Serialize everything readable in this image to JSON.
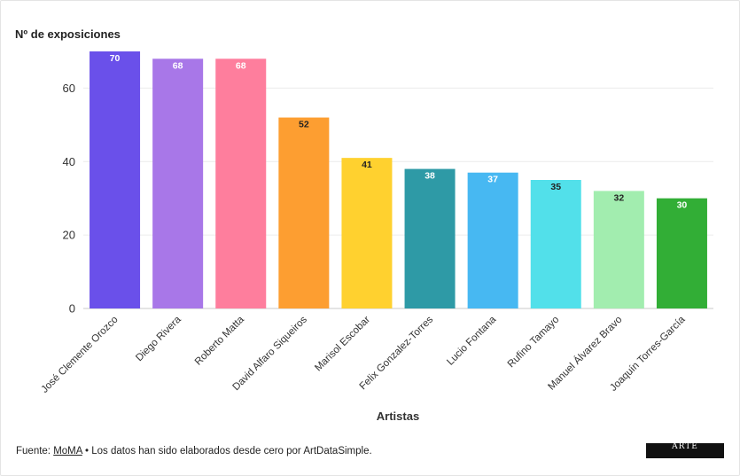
{
  "chart_data": {
    "type": "bar",
    "ylabel": "Nº de exposiciones",
    "xlabel": "Artistas",
    "ylim": [
      0,
      70
    ],
    "yticks": [
      0,
      20,
      40,
      60
    ],
    "grid": true,
    "categories": [
      "José Clemente Orozco",
      "Diego Rivera",
      "Roberto Matta",
      "David Alfaro Siqueiros",
      "Marisol Escobar",
      "Felix Gonzalez-Torres",
      "Lucio Fontana",
      "Rufino Tamayo",
      "Manuel Álvarez Bravo",
      "Joaquín Torres-García"
    ],
    "values": [
      70,
      68,
      68,
      52,
      41,
      38,
      37,
      35,
      32,
      30
    ],
    "colors": [
      "#6a50ea",
      "#a877e8",
      "#fe7e9d",
      "#fd9e31",
      "#ffd12f",
      "#2e9aa6",
      "#47b8f2",
      "#52e0ea",
      "#a2edaf",
      "#32ae36"
    ],
    "label_colors": [
      "#ffffff",
      "#ffffff",
      "#ffffff",
      "#222222",
      "#222222",
      "#ffffff",
      "#ffffff",
      "#222222",
      "#222222",
      "#ffffff"
    ]
  },
  "footer": {
    "prefix": "Fuente: ",
    "source_link": "MoMA",
    "suffix": " • Los datos han sido elaborados desde cero por ArtDataSimple."
  },
  "logo": {
    "text": "ARTE"
  }
}
